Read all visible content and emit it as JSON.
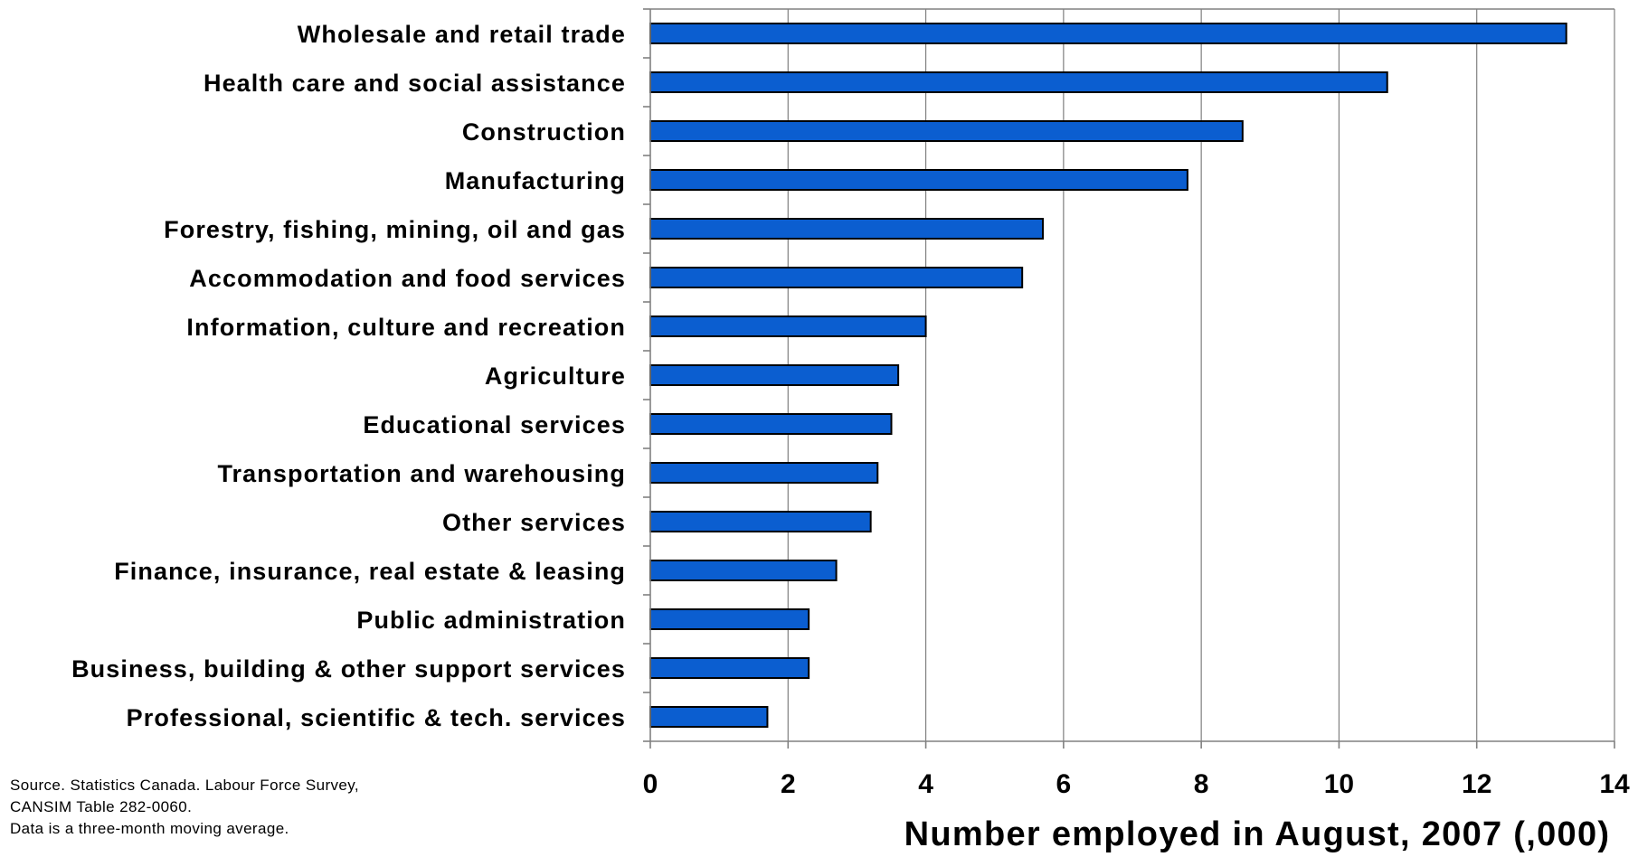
{
  "chart_data": {
    "type": "bar",
    "orientation": "horizontal",
    "categories": [
      "Wholesale and retail trade",
      "Health care and social assistance",
      "Construction",
      "Manufacturing",
      "Forestry, fishing, mining, oil and gas",
      "Accommodation and food services",
      "Information, culture and recreation",
      "Agriculture",
      "Educational services",
      "Transportation and warehousing",
      "Other services",
      "Finance, insurance, real estate & leasing",
      "Public administration",
      "Business, building & other support services",
      "Professional, scientific & tech. services"
    ],
    "values": [
      13.3,
      10.7,
      8.6,
      7.8,
      5.7,
      5.4,
      4.0,
      3.6,
      3.5,
      3.3,
      3.2,
      2.7,
      2.3,
      2.3,
      1.7
    ],
    "title": "",
    "xlabel": "Number employed in August, 2007 (,000)",
    "ylabel": "",
    "xlim": [
      0,
      14
    ],
    "xticks": [
      "0",
      "2",
      "4",
      "6",
      "8",
      "10",
      "12",
      "14"
    ],
    "grid": "vertical",
    "legend": "none",
    "bar_color": "#0b5ed0"
  },
  "source_note": [
    "Source. Statistics Canada. Labour Force Survey,",
    "CANSIM Table 282-0060.",
    "Data is a three-month moving average."
  ]
}
